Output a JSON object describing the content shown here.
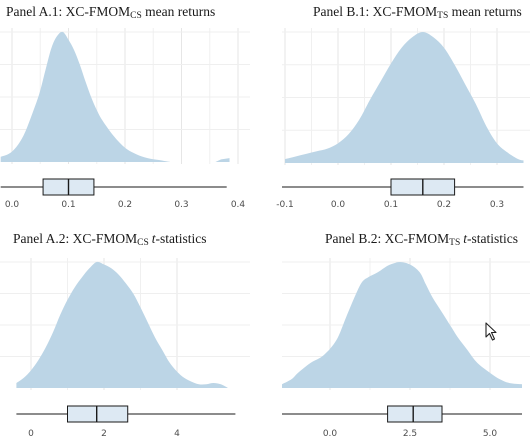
{
  "colors": {
    "density_fill": "#bcd5e6",
    "box_fill": "#dde9f3",
    "grid": "#e6e6e6",
    "line": "#1a1a1a"
  },
  "panels": [
    {
      "id": "A1",
      "title": {
        "prefix": "Panel A.1: XC-FMOM",
        "sub": "CS",
        "suffix": " mean returns",
        "suffix_italic": false
      },
      "xticks": [
        {
          "value": 0.0,
          "label": "0.0"
        },
        {
          "value": 0.1,
          "label": "0.1"
        },
        {
          "value": 0.2,
          "label": "0.2"
        },
        {
          "value": 0.3,
          "label": "0.3"
        },
        {
          "value": 0.4,
          "label": "0.4"
        }
      ]
    },
    {
      "id": "B1",
      "title": {
        "prefix": "Panel B.1: XC-FMOM",
        "sub": "TS",
        "suffix": " mean returns",
        "suffix_italic": false
      },
      "xticks": [
        {
          "value": -0.1,
          "label": "-0.1"
        },
        {
          "value": 0.0,
          "label": "0.0"
        },
        {
          "value": 0.1,
          "label": "0.1"
        },
        {
          "value": 0.2,
          "label": "0.2"
        },
        {
          "value": 0.3,
          "label": "0.3"
        }
      ]
    },
    {
      "id": "A2",
      "title": {
        "prefix": "Panel A.2: XC-FMOM",
        "sub": "CS",
        "suffix": "t",
        "suffix_tail": "-statistics",
        "suffix_italic": true
      },
      "xticks": [
        {
          "value": 0,
          "label": "0"
        },
        {
          "value": 2,
          "label": "2"
        },
        {
          "value": 4,
          "label": "4"
        }
      ]
    },
    {
      "id": "B2",
      "title": {
        "prefix": "Panel B.2: XC-FMOM",
        "sub": "TS",
        "suffix": "t",
        "suffix_tail": "-statistics",
        "suffix_italic": true
      },
      "xticks": [
        {
          "value": 0.0,
          "label": "0.0"
        },
        {
          "value": 2.5,
          "label": "2.5"
        },
        {
          "value": 5.0,
          "label": "5.0"
        }
      ]
    }
  ],
  "chart_data": [
    {
      "type": "area",
      "panel": "A.1",
      "title": "Panel A.1: XC-FMOMCS mean returns",
      "xlim": [
        -0.02,
        0.42
      ],
      "density": {
        "x": [
          -0.02,
          0.0,
          0.02,
          0.04,
          0.05,
          0.06,
          0.07,
          0.08,
          0.09,
          0.1,
          0.11,
          0.12,
          0.13,
          0.14,
          0.15,
          0.16,
          0.18,
          0.2,
          0.22,
          0.24,
          0.26,
          0.28
        ],
        "y": [
          0.04,
          0.08,
          0.2,
          0.42,
          0.55,
          0.72,
          0.88,
          0.97,
          1.0,
          0.94,
          0.86,
          0.75,
          0.62,
          0.5,
          0.4,
          0.32,
          0.2,
          0.11,
          0.06,
          0.03,
          0.015,
          0.0
        ]
      },
      "density_blip": {
        "x": [
          0.36,
          0.37,
          0.385
        ],
        "y": [
          0.0,
          0.02,
          0.03
        ]
      },
      "boxplot": {
        "min": -0.02,
        "q1": 0.055,
        "median": 0.1,
        "q3": 0.145,
        "max": 0.38
      }
    },
    {
      "type": "area",
      "panel": "B.1",
      "title": "Panel B.1: XC-FMOMTS mean returns",
      "xlim": [
        -0.11,
        0.35
      ],
      "density": {
        "x": [
          -0.1,
          -0.08,
          -0.06,
          -0.04,
          -0.02,
          0.0,
          0.02,
          0.04,
          0.06,
          0.08,
          0.1,
          0.12,
          0.14,
          0.16,
          0.18,
          0.2,
          0.22,
          0.24,
          0.26,
          0.28,
          0.3,
          0.32,
          0.34,
          0.35
        ],
        "y": [
          0.03,
          0.05,
          0.07,
          0.09,
          0.11,
          0.15,
          0.22,
          0.33,
          0.48,
          0.62,
          0.76,
          0.88,
          0.96,
          1.0,
          0.96,
          0.88,
          0.75,
          0.6,
          0.45,
          0.28,
          0.15,
          0.08,
          0.03,
          0.02
        ]
      },
      "boxplot": {
        "min": -0.11,
        "q1": 0.1,
        "median": 0.16,
        "q3": 0.22,
        "max": 0.35
      }
    },
    {
      "type": "area",
      "panel": "A.2",
      "title": "Panel A.2: XC-FMOMCS t-statistics",
      "xlim": [
        -0.4,
        5.6
      ],
      "density": {
        "x": [
          -0.4,
          -0.2,
          0.0,
          0.2,
          0.4,
          0.6,
          0.8,
          1.0,
          1.2,
          1.4,
          1.6,
          1.8,
          2.0,
          2.2,
          2.4,
          2.6,
          2.8,
          3.0,
          3.2,
          3.4,
          3.6,
          3.8,
          4.0,
          4.2,
          4.4,
          4.6,
          4.8,
          5.0,
          5.2,
          5.4
        ],
        "y": [
          0.04,
          0.08,
          0.14,
          0.22,
          0.32,
          0.44,
          0.58,
          0.7,
          0.8,
          0.88,
          0.95,
          1.0,
          0.98,
          0.95,
          0.9,
          0.83,
          0.75,
          0.64,
          0.52,
          0.4,
          0.3,
          0.2,
          0.13,
          0.08,
          0.05,
          0.03,
          0.03,
          0.04,
          0.03,
          0.0
        ]
      },
      "boxplot": {
        "min": -0.4,
        "q1": 1.0,
        "median": 1.8,
        "q3": 2.65,
        "max": 5.6
      }
    },
    {
      "type": "area",
      "panel": "B.2",
      "title": "Panel B.2: XC-FMOMTS t-statistics",
      "xlim": [
        -1.5,
        6.0
      ],
      "density": {
        "x": [
          -1.5,
          -1.2,
          -1.0,
          -0.6,
          -0.2,
          0.2,
          0.5,
          0.8,
          1.0,
          1.2,
          1.5,
          1.8,
          2.0,
          2.2,
          2.5,
          2.8,
          3.0,
          3.2,
          3.5,
          3.8,
          4.0,
          4.3,
          4.6,
          5.0,
          5.3,
          5.6,
          6.0
        ],
        "y": [
          0.03,
          0.07,
          0.12,
          0.2,
          0.26,
          0.38,
          0.56,
          0.74,
          0.84,
          0.88,
          0.92,
          0.97,
          0.99,
          1.0,
          0.98,
          0.92,
          0.82,
          0.72,
          0.6,
          0.48,
          0.4,
          0.3,
          0.2,
          0.12,
          0.07,
          0.04,
          0.03
        ]
      },
      "boxplot": {
        "min": -1.5,
        "q1": 1.8,
        "median": 2.6,
        "q3": 3.5,
        "max": 6.0
      }
    }
  ]
}
